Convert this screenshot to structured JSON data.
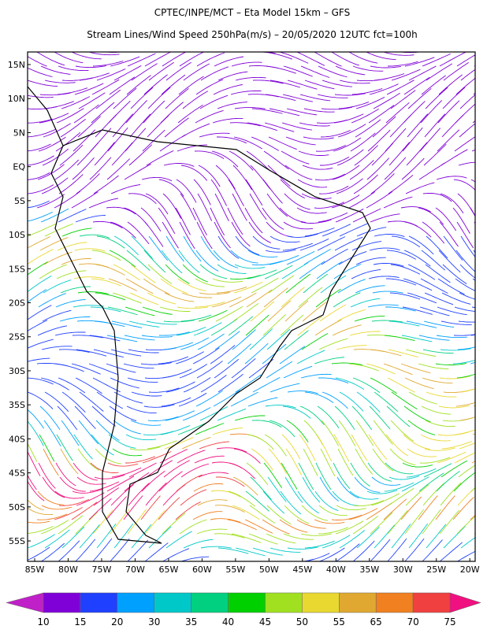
{
  "header": {
    "title": "CPTEC/INPE/MCT –  Eta Model 15km – GFS",
    "subtitle": "Stream Lines/Wind Speed 250hPa(m/s) – 20/05/2020 12UTC fct=100h"
  },
  "map": {
    "lat_labels": [
      {
        "value": 15,
        "label": "15N"
      },
      {
        "value": 10,
        "label": "10N"
      },
      {
        "value": 5,
        "label": "5N"
      },
      {
        "value": 0,
        "label": "EQ"
      },
      {
        "value": -5,
        "label": "5S"
      },
      {
        "value": -10,
        "label": "10S"
      },
      {
        "value": -15,
        "label": "15S"
      },
      {
        "value": -20,
        "label": "20S"
      },
      {
        "value": -25,
        "label": "25S"
      },
      {
        "value": -30,
        "label": "30S"
      },
      {
        "value": -35,
        "label": "35S"
      },
      {
        "value": -40,
        "label": "40S"
      },
      {
        "value": -45,
        "label": "45S"
      },
      {
        "value": -50,
        "label": "50S"
      },
      {
        "value": -55,
        "label": "55S"
      }
    ],
    "lon_labels": [
      {
        "value": -85,
        "label": "85W"
      },
      {
        "value": -80,
        "label": "80W"
      },
      {
        "value": -75,
        "label": "75W"
      },
      {
        "value": -70,
        "label": "70W"
      },
      {
        "value": -65,
        "label": "65W"
      },
      {
        "value": -60,
        "label": "60W"
      },
      {
        "value": -55,
        "label": "55W"
      },
      {
        "value": -50,
        "label": "50W"
      },
      {
        "value": -45,
        "label": "45W"
      },
      {
        "value": -40,
        "label": "40W"
      },
      {
        "value": -35,
        "label": "35W"
      },
      {
        "value": -30,
        "label": "30W"
      },
      {
        "value": -25,
        "label": "25W"
      },
      {
        "value": -20,
        "label": "20W"
      }
    ],
    "latlim": [
      16.85,
      -58.0
    ],
    "lonlim": [
      -86.06,
      -19.2
    ]
  },
  "colorbar": {
    "labels": [
      10,
      15,
      20,
      30,
      35,
      40,
      45,
      50,
      55,
      65,
      70,
      75
    ],
    "colors": [
      "#c020c8",
      "#8000d8",
      "#2040ff",
      "#00a0ff",
      "#00c8c8",
      "#00d080",
      "#00d000",
      "#a0e020",
      "#e8d830",
      "#e0a830",
      "#f08020",
      "#f04040",
      "#f01080"
    ]
  }
}
